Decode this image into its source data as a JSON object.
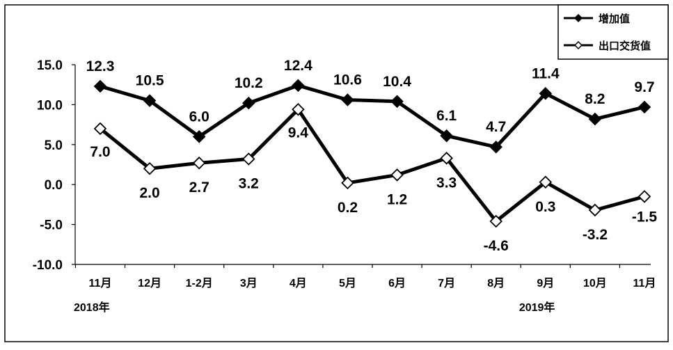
{
  "chart_data": {
    "type": "line",
    "categories": [
      "11月",
      "12月",
      "1-2月",
      "3月",
      "4月",
      "5月",
      "6月",
      "7月",
      "8月",
      "9月",
      "10月",
      "11月"
    ],
    "year_labels": [
      {
        "index": 0,
        "text": "2018年"
      },
      {
        "index": 9,
        "text": "2019年"
      }
    ],
    "ylim": [
      -10.0,
      15.0
    ],
    "yticks": [
      "15.0",
      "10.0",
      "5.0",
      "0.0",
      "-5.0",
      "-10.0"
    ],
    "series": [
      {
        "name": "增加值",
        "marker": "filled-diamond",
        "color": "#000000",
        "values": [
          12.3,
          10.5,
          6.0,
          10.2,
          12.4,
          10.6,
          10.4,
          6.1,
          4.7,
          11.4,
          8.2,
          9.7
        ],
        "labels": [
          "12.3",
          "10.5",
          "6.0",
          "10.2",
          "12.4",
          "10.6",
          "10.4",
          "6.1",
          "4.7",
          "11.4",
          "8.2",
          "9.7"
        ]
      },
      {
        "name": "出口交货值",
        "marker": "hollow-diamond",
        "color": "#000000",
        "values": [
          7.0,
          2.0,
          2.7,
          3.2,
          9.4,
          0.2,
          1.2,
          3.3,
          -4.6,
          0.3,
          -3.2,
          -1.5
        ],
        "labels": [
          "7.0",
          "2.0",
          "2.7",
          "3.2",
          "9.4",
          "0.2",
          "1.2",
          "3.3",
          "-4.6",
          "0.3",
          "-3.2",
          "-1.5"
        ]
      }
    ],
    "legend_position": "top-right",
    "grid": false
  }
}
